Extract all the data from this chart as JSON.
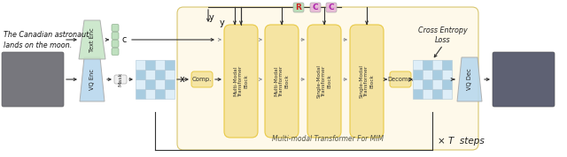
{
  "fig_width": 6.4,
  "fig_height": 1.78,
  "bg_color": "#ffffff",
  "text_color": "#222222",
  "green_trap": "#c8e6c8",
  "green_col": "#b8ddb8",
  "blue_trap": "#b8d8ee",
  "yellow_bg": "#fef9e8",
  "yellow_block": "#f5e4a0",
  "yellow_block_edge": "#e8c840",
  "pink_label": "#e8b8d8",
  "green_label": "#b8ddb8",
  "grid_blue": "#a8cce0",
  "grid_white": "#deeef8",
  "arrow_color": "#333333",
  "dashed_color": "#888888",
  "caption_text": "Multi-modal Transformer For MIM",
  "steps_text": "× T  steps",
  "cross_entropy_text": "Cross Entropy\nLoss",
  "text_input1": "The Canadian astronaut",
  "text_input2": "lands on the moon.",
  "comp_label": "Comp.",
  "decomp_label": "Decomp.",
  "mask_label": "Mask",
  "vqenc_label": "VQ Enc",
  "vqdec_label": "VQ Dec",
  "textenc_label": "Text Enc",
  "c_label": "c",
  "x_label": "x",
  "y_label": "y",
  "R_label": "R",
  "C1_label": "C",
  "C2_label": "C",
  "block_labels": [
    "Multi-Modal\nTransformer\nBlock",
    "Multi-Modal\nTransformer\nBlock",
    "Single-Modal\nTransformer\nBlock",
    "Single-Modal\nTransformer\nBlock"
  ],
  "img_color": "#686868",
  "img2_color": "#505060",
  "yellow_bg_edge": "#d4c060"
}
